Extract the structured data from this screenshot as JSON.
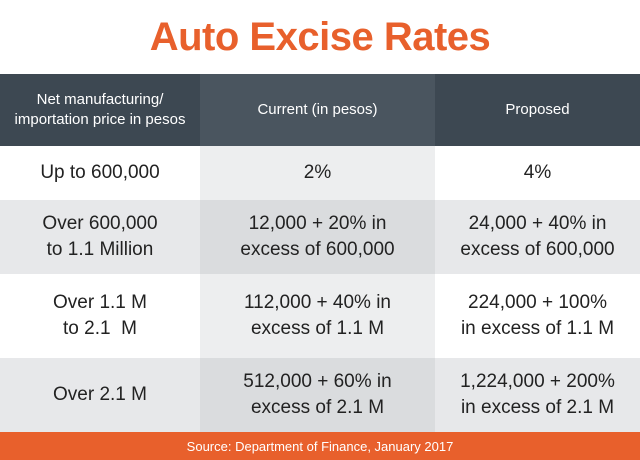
{
  "title": "Auto Excise Rates",
  "table": {
    "headers": {
      "price": "Net manufacturing/ importation price in pesos",
      "current": "Current (in pesos)",
      "proposed": "Proposed"
    },
    "rows": [
      {
        "price": [
          "Up to 600,000"
        ],
        "current": [
          "2%"
        ],
        "proposed": [
          "4%"
        ]
      },
      {
        "price": [
          "Over 600,000",
          "to 1.1 Million"
        ],
        "current": [
          "12,000 + 20% in",
          "excess of 600,000"
        ],
        "proposed": [
          "24,000 + 40% in",
          "excess of 600,000"
        ]
      },
      {
        "price": [
          "Over 1.1 M",
          "to 2.1  M"
        ],
        "current": [
          "112,000 + 40% in",
          "excess of 1.1 M"
        ],
        "proposed": [
          "224,000 + 100%",
          "in excess of 1.1 M"
        ]
      },
      {
        "price": [
          "Over 2.1 M"
        ],
        "current": [
          "512,000 + 60% in",
          "excess of 2.1 M"
        ],
        "proposed": [
          "1,224,000 + 200%",
          "in excess of 2.1 M"
        ]
      }
    ]
  },
  "source": "Source: Department of Finance, January 2017",
  "colors": {
    "accent": "#e8602c",
    "header_bg": "#3d4852"
  }
}
